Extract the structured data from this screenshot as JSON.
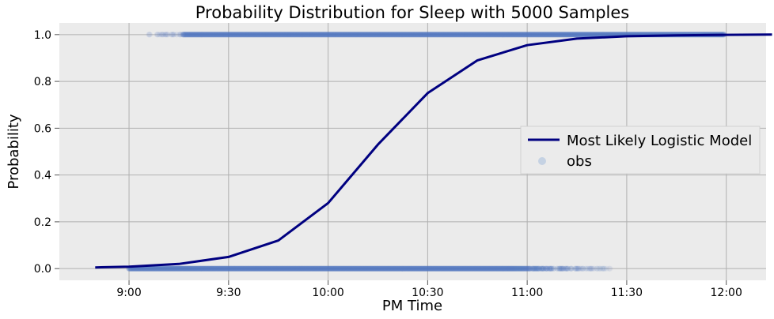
{
  "chart_data": {
    "type": "line",
    "title": "Probability Distribution for Sleep with 5000 Samples",
    "xlabel": "PM Time",
    "ylabel": "Probability",
    "x_unit": "PM clock time (hours)",
    "xlim": [
      8.65,
      12.2
    ],
    "ylim": [
      -0.05,
      1.05
    ],
    "x_ticks": [
      {
        "value": 9.0,
        "label": "9:00"
      },
      {
        "value": 9.5,
        "label": "9:30"
      },
      {
        "value": 10.0,
        "label": "10:00"
      },
      {
        "value": 10.5,
        "label": "10:30"
      },
      {
        "value": 11.0,
        "label": "11:00"
      },
      {
        "value": 11.5,
        "label": "11:30"
      },
      {
        "value": 12.0,
        "label": "12:00"
      }
    ],
    "y_ticks": [
      {
        "value": 0.0,
        "label": "0.0"
      },
      {
        "value": 0.2,
        "label": "0.2"
      },
      {
        "value": 0.4,
        "label": "0.4"
      },
      {
        "value": 0.6,
        "label": "0.6"
      },
      {
        "value": 0.8,
        "label": "0.8"
      },
      {
        "value": 1.0,
        "label": "1.0"
      }
    ],
    "grid": true,
    "legend_position": "center-right",
    "series": [
      {
        "name": "Most Likely Logistic Model",
        "kind": "line",
        "color": "#000080",
        "x": [
          8.83,
          9.0,
          9.25,
          9.5,
          9.75,
          10.0,
          10.25,
          10.5,
          10.75,
          11.0,
          11.25,
          11.5,
          11.75,
          12.0,
          12.23
        ],
        "y": [
          0.005,
          0.008,
          0.02,
          0.05,
          0.12,
          0.28,
          0.53,
          0.75,
          0.89,
          0.955,
          0.983,
          0.993,
          0.997,
          0.999,
          1.0
        ]
      },
      {
        "name": "obs",
        "kind": "scatter",
        "color": "#4f75bf",
        "bands": [
          {
            "y": 1.0,
            "x_start": 9.1,
            "x_dense_start": 9.27,
            "x_end": 11.99
          },
          {
            "y": 0.0,
            "x_start": 9.0,
            "x_dense_end": 10.9,
            "x_end": 11.43
          }
        ]
      }
    ]
  },
  "colors": {
    "plot_background": "#ebebeb",
    "grid": "#b0b0b0",
    "model_line": "#000080",
    "obs_points": "#4f75bf",
    "legend_obs_marker": "#c5d2e3"
  }
}
